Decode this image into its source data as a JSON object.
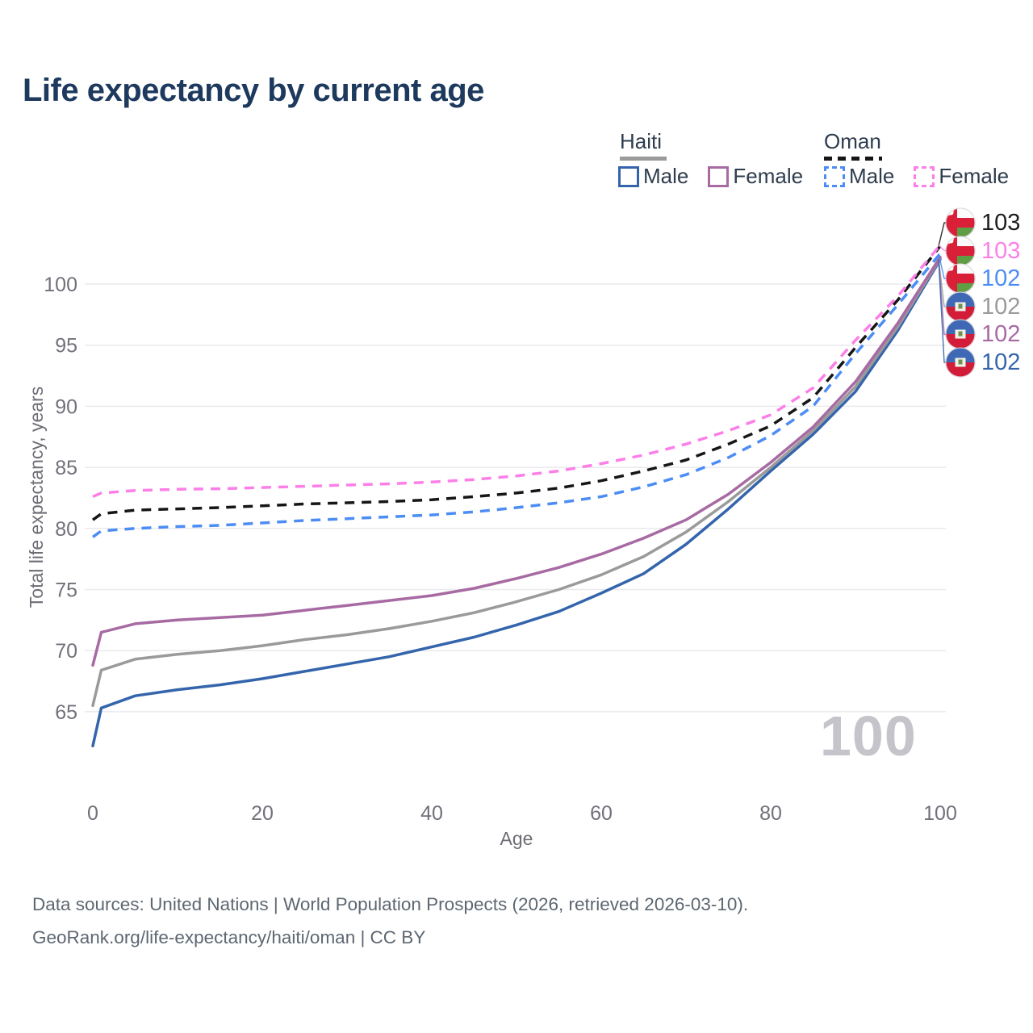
{
  "title": "Life expectancy by current age",
  "watermark": "100",
  "legend": {
    "haiti": {
      "name": "Haiti",
      "line_color": "#9a9a9a",
      "male_label": "Male",
      "male_color": "#3465ac",
      "female_label": "Female",
      "female_color": "#a76aa3"
    },
    "oman": {
      "name": "Oman",
      "line_color": "#161616",
      "male_label": "Male",
      "male_color": "#4c8df5",
      "female_label": "Female",
      "female_color": "#fc7fe8"
    }
  },
  "chart_data": {
    "type": "line",
    "title": "Life expectancy by current age",
    "xlabel": "Age",
    "ylabel": "Total life expectancy, years",
    "xlim": [
      0,
      100
    ],
    "ylim": [
      60,
      105
    ],
    "grid": "horizontal",
    "legend_position": "top-right",
    "xticks": [
      0,
      20,
      40,
      60,
      80,
      100
    ],
    "yticks": [
      65,
      70,
      75,
      80,
      85,
      90,
      95,
      100
    ],
    "ages": [
      0,
      1,
      5,
      10,
      15,
      20,
      25,
      30,
      35,
      40,
      45,
      50,
      55,
      60,
      65,
      70,
      75,
      80,
      85,
      90,
      95,
      100
    ],
    "series": [
      {
        "id": "haiti_male",
        "name": "Haiti Male",
        "color": "#3465ac",
        "dashed": false,
        "values": [
          62.2,
          65.3,
          66.3,
          66.8,
          67.2,
          67.7,
          68.3,
          68.9,
          69.5,
          70.3,
          71.1,
          72.1,
          73.2,
          74.7,
          76.3,
          78.7,
          81.6,
          84.7,
          87.7,
          91.2,
          96.2,
          102.0
        ]
      },
      {
        "id": "haiti_all",
        "name": "Haiti Both sexes",
        "color": "#9a9a9a",
        "dashed": false,
        "values": [
          65.5,
          68.4,
          69.3,
          69.7,
          70.0,
          70.4,
          70.9,
          71.3,
          71.8,
          72.4,
          73.1,
          74.0,
          75.0,
          76.2,
          77.7,
          79.7,
          82.2,
          85.0,
          88.0,
          91.6,
          96.5,
          102.1
        ]
      },
      {
        "id": "haiti_female",
        "name": "Haiti Female",
        "color": "#a76aa3",
        "dashed": false,
        "values": [
          68.8,
          71.5,
          72.2,
          72.5,
          72.7,
          72.9,
          73.3,
          73.7,
          74.1,
          74.5,
          75.1,
          75.9,
          76.8,
          77.9,
          79.2,
          80.7,
          82.8,
          85.4,
          88.3,
          92.0,
          96.8,
          102.2
        ]
      },
      {
        "id": "oman_male",
        "name": "Oman Male",
        "color": "#4c8df5",
        "dashed": true,
        "values": [
          79.3,
          79.8,
          80.0,
          80.15,
          80.25,
          80.45,
          80.65,
          80.8,
          80.95,
          81.1,
          81.35,
          81.7,
          82.1,
          82.6,
          83.4,
          84.4,
          85.8,
          87.6,
          90.0,
          94.3,
          98.3,
          102.5
        ]
      },
      {
        "id": "oman_all",
        "name": "Oman Both sexes",
        "color": "#161616",
        "dashed": true,
        "values": [
          80.7,
          81.2,
          81.5,
          81.6,
          81.7,
          81.85,
          82.0,
          82.1,
          82.2,
          82.35,
          82.6,
          82.9,
          83.3,
          83.9,
          84.7,
          85.6,
          86.9,
          88.4,
          90.7,
          94.8,
          98.7,
          103.1
        ]
      },
      {
        "id": "oman_female",
        "name": "Oman Female",
        "color": "#fc7fe8",
        "dashed": true,
        "values": [
          82.6,
          82.9,
          83.1,
          83.2,
          83.25,
          83.35,
          83.45,
          83.55,
          83.65,
          83.8,
          84.0,
          84.3,
          84.7,
          85.3,
          86.0,
          86.9,
          88.0,
          89.3,
          91.5,
          95.4,
          99.0,
          103.2
        ]
      }
    ]
  },
  "end_labels": [
    {
      "series": "oman_all",
      "flag": "oman",
      "value": "103",
      "color": "#1d1d1f",
      "end": 103.1
    },
    {
      "series": "oman_female",
      "flag": "oman",
      "value": "103",
      "color": "#fc7fe8",
      "end": 103.2
    },
    {
      "series": "oman_male",
      "flag": "oman",
      "value": "102",
      "color": "#4c8df5",
      "end": 102.5
    },
    {
      "series": "haiti_all",
      "flag": "haiti",
      "value": "102",
      "color": "#9a9a9a",
      "end": 102.1
    },
    {
      "series": "haiti_female",
      "flag": "haiti",
      "value": "102",
      "color": "#a76aa3",
      "end": 102.2
    },
    {
      "series": "haiti_male",
      "flag": "haiti",
      "value": "102",
      "color": "#3465ac",
      "end": 102.0
    }
  ],
  "footer": {
    "line1": "Data sources: United Nations | World Population Prospects (2026, retrieved 2026-03-10).",
    "line2": "GeoRank.org/life-expectancy/haiti/oman | CC BY"
  },
  "colors": {
    "title": "#1d3a5e",
    "grid": "#eaeaee",
    "tick": "#71717b",
    "watermark": "#c4c4ca",
    "footer": "#5d6771"
  }
}
